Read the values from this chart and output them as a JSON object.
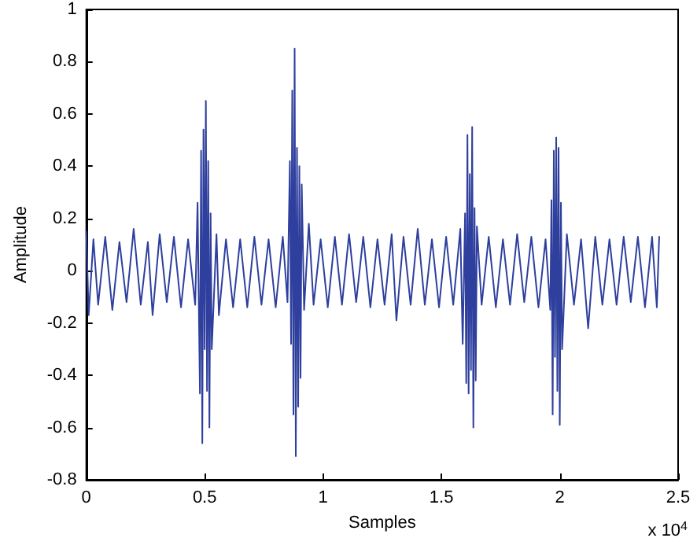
{
  "chart_data": {
    "type": "line",
    "xlabel": "Samples",
    "ylabel": "Amplitude",
    "annotations": [
      "x 10$^{4}$"
    ],
    "x": [
      0,
      0.01,
      0.03,
      0.05,
      0.08,
      0.11,
      0.14,
      0.17,
      0.2,
      0.23,
      0.26,
      0.28,
      0.31,
      0.34,
      0.37,
      0.4,
      0.43,
      0.46,
      0.47,
      0.48,
      0.485,
      0.49,
      0.495,
      0.5,
      0.505,
      0.51,
      0.515,
      0.52,
      0.525,
      0.53,
      0.55,
      0.56,
      0.59,
      0.62,
      0.65,
      0.68,
      0.71,
      0.74,
      0.77,
      0.8,
      0.83,
      0.85,
      0.86,
      0.865,
      0.87,
      0.875,
      0.88,
      0.885,
      0.89,
      0.895,
      0.9,
      0.905,
      0.91,
      0.92,
      0.94,
      0.96,
      0.99,
      1.02,
      1.05,
      1.08,
      1.11,
      1.14,
      1.17,
      1.2,
      1.23,
      1.26,
      1.29,
      1.31,
      1.34,
      1.37,
      1.4,
      1.43,
      1.46,
      1.49,
      1.52,
      1.55,
      1.58,
      1.59,
      1.6,
      1.605,
      1.61,
      1.615,
      1.62,
      1.625,
      1.63,
      1.635,
      1.64,
      1.645,
      1.65,
      1.67,
      1.7,
      1.73,
      1.76,
      1.79,
      1.82,
      1.85,
      1.88,
      1.91,
      1.94,
      1.96,
      1.965,
      1.97,
      1.975,
      1.98,
      1.985,
      1.99,
      1.995,
      2,
      2.005,
      2.01,
      2.03,
      2.06,
      2.09,
      2.12,
      2.15,
      2.18,
      2.21,
      2.24,
      2.27,
      2.3,
      2.33,
      2.36,
      2.39,
      2.41,
      2.42
    ],
    "series": [
      {
        "color": "#2e3f9e",
        "values": [
          0.15,
          -0.17,
          0.12,
          -0.13,
          0.13,
          -0.15,
          0.11,
          -0.12,
          0.16,
          -0.13,
          0.11,
          -0.17,
          0.14,
          -0.12,
          0.13,
          -0.14,
          0.12,
          -0.13,
          0.26,
          -0.47,
          0.46,
          -0.66,
          0.54,
          -0.3,
          0.65,
          -0.46,
          0.42,
          -0.6,
          0.22,
          -0.3,
          0.14,
          -0.17,
          0.12,
          -0.14,
          0.12,
          -0.14,
          0.13,
          -0.13,
          0.12,
          -0.14,
          0.13,
          -0.12,
          0.42,
          -0.28,
          0.69,
          -0.55,
          0.85,
          -0.71,
          0.47,
          -0.52,
          0.4,
          -0.41,
          0.33,
          -0.15,
          0.18,
          -0.13,
          0.12,
          -0.14,
          0.13,
          -0.13,
          0.14,
          -0.12,
          0.13,
          -0.14,
          0.12,
          -0.13,
          0.14,
          -0.19,
          0.13,
          -0.13,
          0.16,
          -0.13,
          0.12,
          -0.14,
          0.13,
          -0.13,
          0.16,
          -0.28,
          0.22,
          -0.43,
          0.52,
          -0.47,
          0.37,
          -0.38,
          0.55,
          -0.6,
          0.24,
          -0.42,
          0.17,
          -0.13,
          0.13,
          -0.14,
          0.12,
          -0.13,
          0.14,
          -0.12,
          0.13,
          -0.14,
          0.12,
          -0.15,
          0.27,
          -0.55,
          0.46,
          -0.33,
          0.51,
          -0.46,
          0.47,
          -0.59,
          0.26,
          -0.3,
          0.14,
          -0.13,
          0.12,
          -0.22,
          0.13,
          -0.13,
          0.12,
          -0.13,
          0.13,
          -0.12,
          0.13,
          -0.14,
          0.13,
          -0.14,
          0.13
        ]
      }
    ],
    "xlim": [
      0,
      2.5
    ],
    "xticks": [
      0,
      0.5,
      1,
      1.5,
      2,
      2.5
    ],
    "ylim": [
      -0.8,
      1
    ],
    "yticks": [
      -0.8,
      -0.6,
      -0.4,
      -0.2,
      0,
      0.2,
      0.4,
      0.6,
      0.8,
      1
    ],
    "grid": false,
    "marker": "none",
    "line_style": "solid"
  }
}
